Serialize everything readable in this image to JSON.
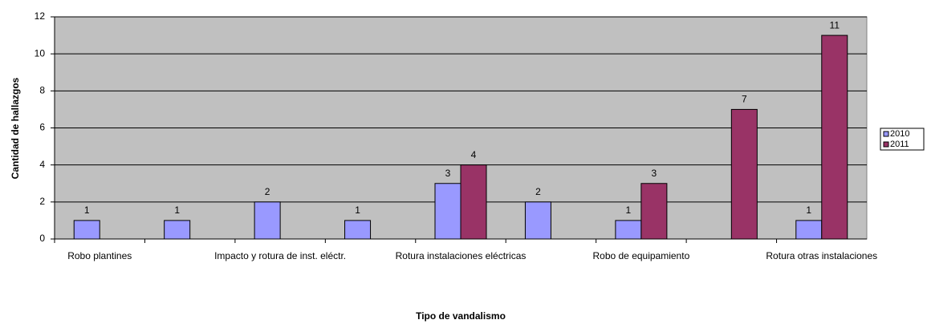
{
  "chart_data": {
    "type": "bar",
    "categories": [
      "Robo plantines",
      null,
      "Impacto y rotura de inst. eléctr.",
      null,
      "Rotura instalaciones eléctricas",
      null,
      "Robo de equipamiento",
      null,
      "Rotura otras instalaciones"
    ],
    "series": [
      {
        "name": "2010",
        "color": "#9999ff",
        "values": [
          1,
          1,
          2,
          1,
          3,
          2,
          1,
          null,
          1
        ]
      },
      {
        "name": "2011",
        "color": "#993366",
        "values": [
          null,
          null,
          null,
          null,
          4,
          null,
          3,
          7,
          11
        ]
      }
    ],
    "ylim": [
      0,
      12
    ],
    "yticks": [
      0,
      2,
      4,
      6,
      8,
      10,
      12
    ],
    "grid": true,
    "x_label": "Tipo de vandalismo",
    "y_label": "Cantidad de hallazgos",
    "legend": "right",
    "plot_background": "#c0c0c0"
  }
}
